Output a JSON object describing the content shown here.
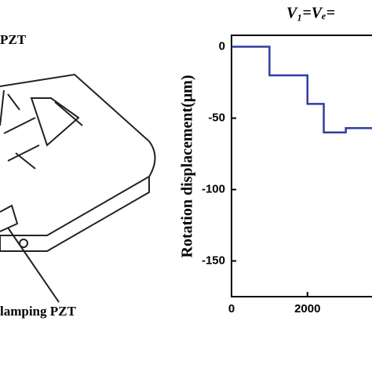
{
  "chart_data": {
    "type": "line",
    "title": "V₁=Vₑ=",
    "ylabel": "Rotation displacement(μm)",
    "x": [
      0,
      1000,
      1000,
      2000,
      2000,
      2430,
      2430,
      3010,
      3010,
      3700
    ],
    "series": [
      {
        "color": "#2f3f9e",
        "values": [
          0,
          0,
          -20,
          -20,
          -40,
          -40,
          -60,
          -60,
          -57,
          -57
        ]
      }
    ],
    "xlim": [
      0,
      3700
    ],
    "xticks": [
      0,
      2000
    ],
    "ylim": [
      -175,
      8
    ],
    "yticks": [
      0,
      -50,
      -100,
      -150
    ]
  },
  "diagram": {
    "labels": [
      "PZT",
      "lamping PZT"
    ]
  }
}
